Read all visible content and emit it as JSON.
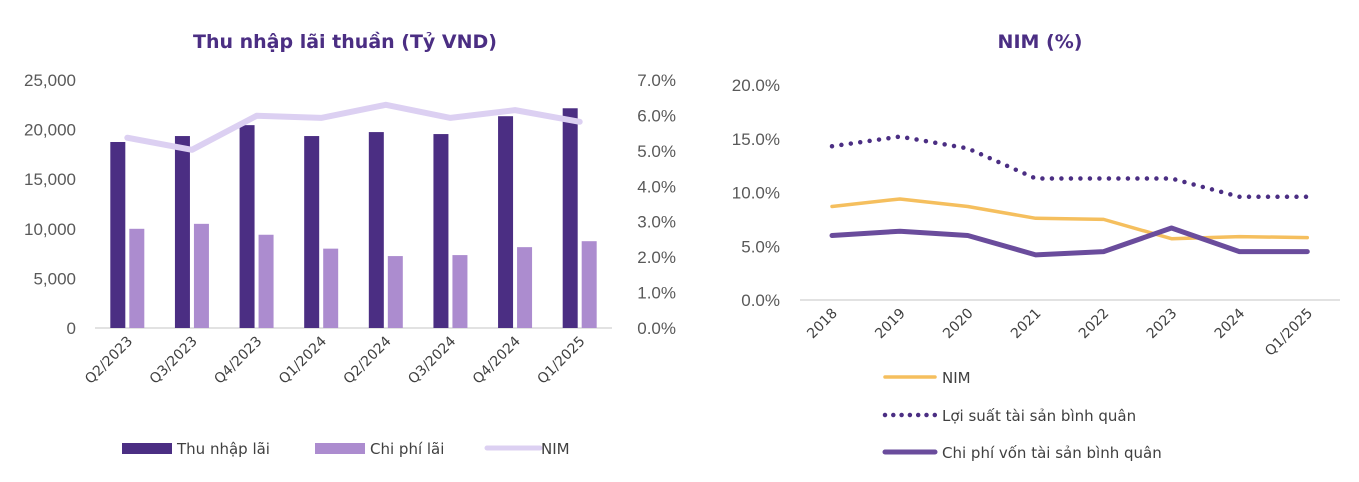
{
  "chart_data": [
    {
      "type": "bar",
      "title": "Thu nhập lãi thuần (Tỷ VND)",
      "categories": [
        "Q2/2023",
        "Q3/2023",
        "Q4/2023",
        "Q1/2024",
        "Q2/2024",
        "Q3/2024",
        "Q4/2024",
        "Q1/2025"
      ],
      "series": [
        {
          "name": "Thu nhập lãi",
          "kind": "bar",
          "axis": "left",
          "color": "#4b2e83",
          "values": [
            18750,
            19350,
            20450,
            19350,
            19750,
            19550,
            21350,
            22150
          ]
        },
        {
          "name": "Chi phí lãi",
          "kind": "bar",
          "axis": "left",
          "color": "#ac8ccf",
          "values": [
            10000,
            10500,
            9400,
            8000,
            7250,
            7350,
            8150,
            8750
          ]
        },
        {
          "name": "NIM",
          "kind": "line",
          "axis": "right",
          "color": "#dcd0f2",
          "values": [
            5.37,
            5.03,
            5.99,
            5.93,
            6.3,
            5.93,
            6.15,
            5.82
          ]
        }
      ],
      "y_left": {
        "min": 0,
        "max": 25000,
        "ticks": [
          0,
          5000,
          10000,
          15000,
          20000,
          25000
        ],
        "tick_labels": [
          "0",
          "5,000",
          "10,000",
          "15,000",
          "20,000",
          "25,000"
        ]
      },
      "y_right": {
        "min": 0,
        "max": 7,
        "ticks": [
          0,
          1,
          2,
          3,
          4,
          5,
          6,
          7
        ],
        "tick_labels": [
          "0.0%",
          "1.0%",
          "2.0%",
          "3.0%",
          "4.0%",
          "5.0%",
          "6.0%",
          "7.0%"
        ]
      },
      "xlabel": "",
      "ylabel": "",
      "grid": false,
      "legend_position": "bottom"
    },
    {
      "type": "line",
      "title": "NIM (%)",
      "categories": [
        "2018",
        "2019",
        "2020",
        "2021",
        "2022",
        "2023",
        "2024",
        "Q1/2025"
      ],
      "series": [
        {
          "name": "NIM",
          "style": "solid",
          "color": "#f5bf5e",
          "values": [
            8.7,
            9.4,
            8.7,
            7.6,
            7.5,
            5.7,
            5.9,
            5.8
          ]
        },
        {
          "name": "Lợi suất tài sản bình quân",
          "style": "dotted",
          "color": "#4b2e83",
          "values": [
            14.3,
            15.2,
            14.1,
            11.3,
            11.3,
            11.3,
            9.6,
            9.6
          ]
        },
        {
          "name": "Chi phí vốn tài sản bình quân",
          "style": "solid-thick",
          "color": "#6a4c9c",
          "values": [
            6.0,
            6.4,
            6.0,
            4.2,
            4.5,
            6.7,
            4.5,
            4.5
          ]
        }
      ],
      "y": {
        "min": 0,
        "max": 20,
        "ticks": [
          0,
          5,
          10,
          15,
          20
        ],
        "tick_labels": [
          "0.0%",
          "5.0%",
          "10.0%",
          "15.0%",
          "20.0%"
        ]
      },
      "xlabel": "",
      "ylabel": "",
      "grid": false,
      "legend_position": "bottom-left"
    }
  ]
}
